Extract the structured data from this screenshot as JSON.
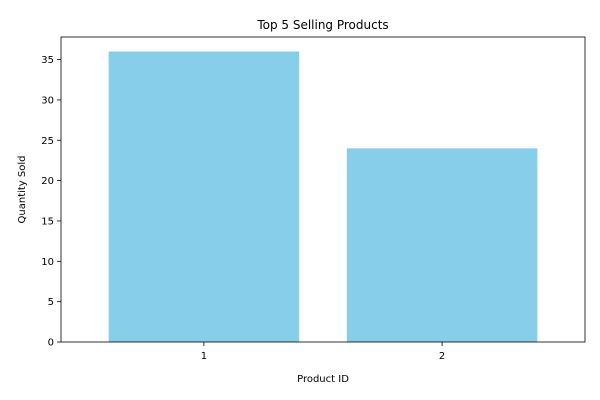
{
  "chart_data": {
    "type": "bar",
    "title": "Top 5 Selling Products",
    "xlabel": "Product ID",
    "ylabel": "Quantity Sold",
    "categories": [
      "1",
      "2"
    ],
    "values": [
      36,
      24
    ],
    "ylim": [
      0,
      37.8
    ],
    "yticks": [
      0,
      5,
      10,
      15,
      20,
      25,
      30,
      35
    ],
    "bar_color": "#87ceeb",
    "grid": false,
    "legend": "none"
  }
}
